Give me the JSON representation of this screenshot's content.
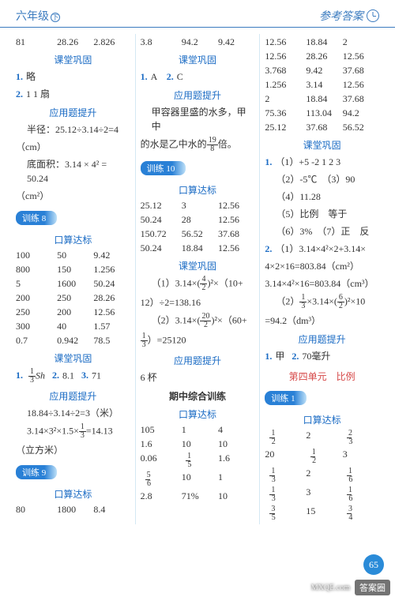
{
  "header": {
    "grade": "六年级",
    "badge": "下",
    "right": "参考答案"
  },
  "col1": {
    "topRow": [
      "81",
      "28.26",
      "2.826"
    ],
    "sec1_title": "课堂巩固",
    "sec1_q1_num": "1.",
    "sec1_q1_text": "略",
    "sec1_q2_num": "2.",
    "sec1_q2_text": "1  1  扇",
    "sec2_title": "应用题提升",
    "sec2_line1a": "半径：25.12÷3.14÷2=4",
    "sec2_line1b": "（cm）",
    "sec2_line2a": "底面积：3.14 × 4² = 50.24",
    "sec2_line2b": "（cm²）",
    "train8": "训练 8",
    "sec3_title": "口算达标",
    "sec3_rows": [
      [
        "100",
        "50",
        "9.42"
      ],
      [
        "800",
        "150",
        "1.256"
      ],
      [
        "5",
        "1600",
        "50.24"
      ],
      [
        "200",
        "250",
        "28.26"
      ],
      [
        "250",
        "200",
        "12.56"
      ],
      [
        "300",
        "40",
        "1.57"
      ],
      [
        "0.7",
        "0.942",
        "78.5"
      ]
    ],
    "sec4_title": "课堂巩固",
    "sec4_q1_num": "1.",
    "sec4_q1_frac_num": "1",
    "sec4_q1_frac_den": "3",
    "sec4_q1_after": "Sh",
    "sec4_q2_num": "2.",
    "sec4_q2_text": "8.1",
    "sec4_q3_num": "3.",
    "sec4_q3_text": "71",
    "sec5_title": "应用题提升",
    "sec5_line1": "18.84÷3.14÷2=3（米）",
    "sec5_line2a": "3.14×3²×1.5×",
    "sec5_line2_frac_num": "1",
    "sec5_line2_frac_den": "3",
    "sec5_line2b": "=14.13",
    "sec5_line3": "（立方米）",
    "train9": "训练 9",
    "sec6_title": "口算达标",
    "sec6_row": [
      "80",
      "1800",
      "8.4"
    ]
  },
  "col2": {
    "topRow": [
      "3.8",
      "94.2",
      "9.42"
    ],
    "sec1_title": "课堂巩固",
    "sec1_q1_num": "1.",
    "sec1_q1_text": "A",
    "sec1_q2_num": "2.",
    "sec1_q2_text": "C",
    "sec2_title": "应用题提升",
    "sec2_line1": "甲容器里盛的水多，甲中",
    "sec2_line2a": "的水是乙中水的",
    "sec2_frac_num": "19",
    "sec2_frac_den": "8",
    "sec2_line2b": "倍。",
    "train10": "训练 10",
    "sec3_title": "口算达标",
    "sec3_rows": [
      [
        "25.12",
        "3",
        "12.56"
      ],
      [
        "50.24",
        "28",
        "12.56"
      ],
      [
        "150.72",
        "56.52",
        "37.68"
      ],
      [
        "50.24",
        "18.84",
        "12.56"
      ]
    ],
    "sec4_title": "课堂巩固",
    "sec4_line1a": "（1）3.14×",
    "sec4_p1_num": "4",
    "sec4_p1_den": "2",
    "sec4_line1b": "²×（10+",
    "sec4_line2": "12）÷2=138.16",
    "sec4_line3a": "（2）3.14×",
    "sec4_p2_num": "20",
    "sec4_p2_den": "2",
    "sec4_line3b": "²×（60+",
    "sec4_line4_frac_num": "1",
    "sec4_line4_frac_den": "3",
    "sec4_line4_text": "）=25120",
    "sec5_title": "应用题提升",
    "sec5_text": "6 杯",
    "mid_title": "期中综合训练",
    "sec6_title": "口算达标",
    "sec6_rows": [
      [
        "105",
        "1",
        "4"
      ],
      [
        "1.6",
        "10",
        "10"
      ],
      [
        "0.06",
        "__FRAC_1_5__",
        "1.6"
      ],
      [
        "__FRAC_5_6__",
        "10",
        "1"
      ],
      [
        "2.8",
        "71%",
        "10"
      ]
    ]
  },
  "col3": {
    "topRows": [
      [
        "12.56",
        "18.84",
        "2"
      ],
      [
        "12.56",
        "28.26",
        "12.56"
      ],
      [
        "3.768",
        "9.42",
        "37.68"
      ],
      [
        "1.256",
        "3.14",
        "12.56"
      ],
      [
        "2",
        "18.84",
        "37.68"
      ],
      [
        "75.36",
        "113.04",
        "94.2"
      ],
      [
        "25.12",
        "37.68",
        "56.52"
      ]
    ],
    "sec1_title": "课堂巩固",
    "sec1_q1_num": "1.",
    "sec1_q1_text": "（1）+5  -2  1  2  3",
    "sec1_l2": "（2）-5℃　（3）90",
    "sec1_l3": "（4）11.28",
    "sec1_l4": "（5）比例　等于",
    "sec1_l5": "（6）3%　（7）正　反",
    "sec1_q2_num": "2.",
    "sec1_q2_text": "（1）3.14×4²×2+3.14×",
    "sec1_l6": "4×2×16=803.84（cm²）",
    "sec1_l7a": "3.14×4²×16=803.84（cm³）",
    "sec1_l8a": "（2）",
    "sec1_l8_f1n": "1",
    "sec1_l8_f1d": "3",
    "sec1_l8_mid": "×3.14×",
    "sec1_l8_f2n": "6",
    "sec1_l8_f2d": "2",
    "sec1_l8b": "²×10",
    "sec1_l9": "=94.2（dm³）",
    "sec2_title": "应用题提升",
    "sec2_q1_num": "1.",
    "sec2_q1_text": "甲",
    "sec2_q2_num": "2.",
    "sec2_q2_text": "70毫升",
    "unit_title": "第四单元　比例",
    "train1": "训练 1",
    "sec3_title": "口算达标",
    "sec3_rows": [
      [
        "__FRAC_1_2__",
        "2",
        "__FRAC_2_3__"
      ],
      [
        "20",
        "__FRAC_1_2__",
        "3"
      ],
      [
        "__FRAC_1_3__",
        "2",
        "__FRAC_1_6__"
      ],
      [
        "__FRAC_1_3__",
        "3",
        "__FRAC_1_6__"
      ],
      [
        "__FRAC_3_5__",
        "15",
        "__FRAC_3_4__"
      ]
    ]
  },
  "page_num": "65",
  "wm_badge": "答案圈",
  "wm_url": "MXQE.com"
}
